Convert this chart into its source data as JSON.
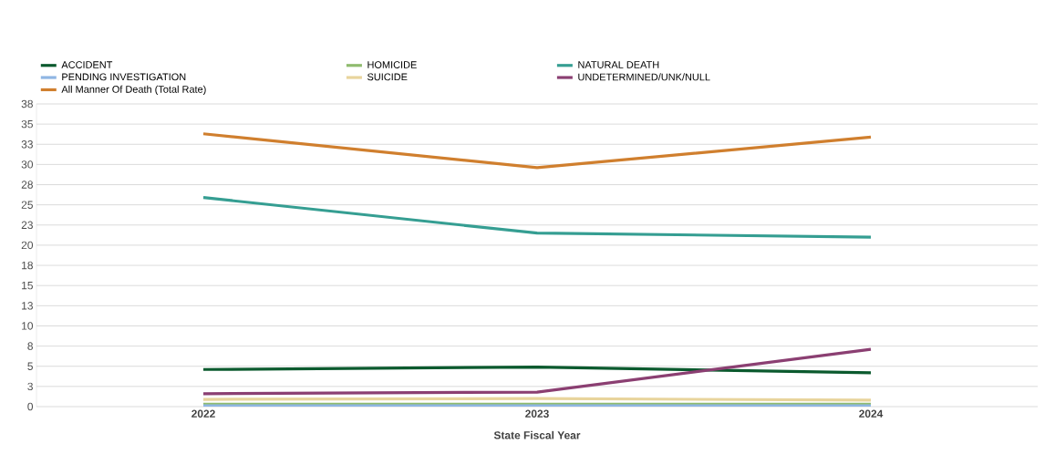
{
  "chart_data": {
    "type": "line",
    "xlabel": "State Fiscal Year",
    "categories": [
      "2022",
      "2023",
      "2024"
    ],
    "series": [
      {
        "name": "ACCIDENT",
        "color": "#0b5a2e",
        "values": [
          4.6,
          4.9,
          4.2
        ]
      },
      {
        "name": "HOMICIDE",
        "color": "#8fbb6e",
        "values": [
          0.3,
          0.3,
          0.3
        ]
      },
      {
        "name": "NATURAL DEATH",
        "color": "#359e92",
        "values": [
          25.9,
          21.5,
          21.0
        ]
      },
      {
        "name": "PENDING INVESTIGATION",
        "color": "#8fb6e3",
        "values": [
          0.1,
          0.1,
          0.1
        ]
      },
      {
        "name": "SUICIDE",
        "color": "#e8d49c",
        "values": [
          0.9,
          1.0,
          0.8
        ]
      },
      {
        "name": "UNDETERMINED/UNK/NULL",
        "color": "#8b3f72",
        "values": [
          1.6,
          1.8,
          7.1
        ]
      },
      {
        "name": "All Manner Of Death (Total Rate)",
        "color": "#d07f2e",
        "values": [
          33.8,
          29.6,
          33.4
        ]
      }
    ],
    "ylim": [
      0,
      37.5
    ],
    "yticks": [
      0,
      {
        "value": 2.5,
        "label": "3"
      },
      5,
      {
        "value": 7.5,
        "label": "8"
      },
      10,
      {
        "value": 12.5,
        "label": "13"
      },
      15,
      {
        "value": 17.5,
        "label": "18"
      },
      20,
      {
        "value": 22.5,
        "label": "23"
      },
      25,
      {
        "value": 27.5,
        "label": "28"
      },
      30,
      {
        "value": 32.5,
        "label": "33"
      },
      35,
      {
        "value": 37.5,
        "label": "38"
      }
    ],
    "grid": "y",
    "legend": "top",
    "marker": "none",
    "line_style": "solid"
  }
}
